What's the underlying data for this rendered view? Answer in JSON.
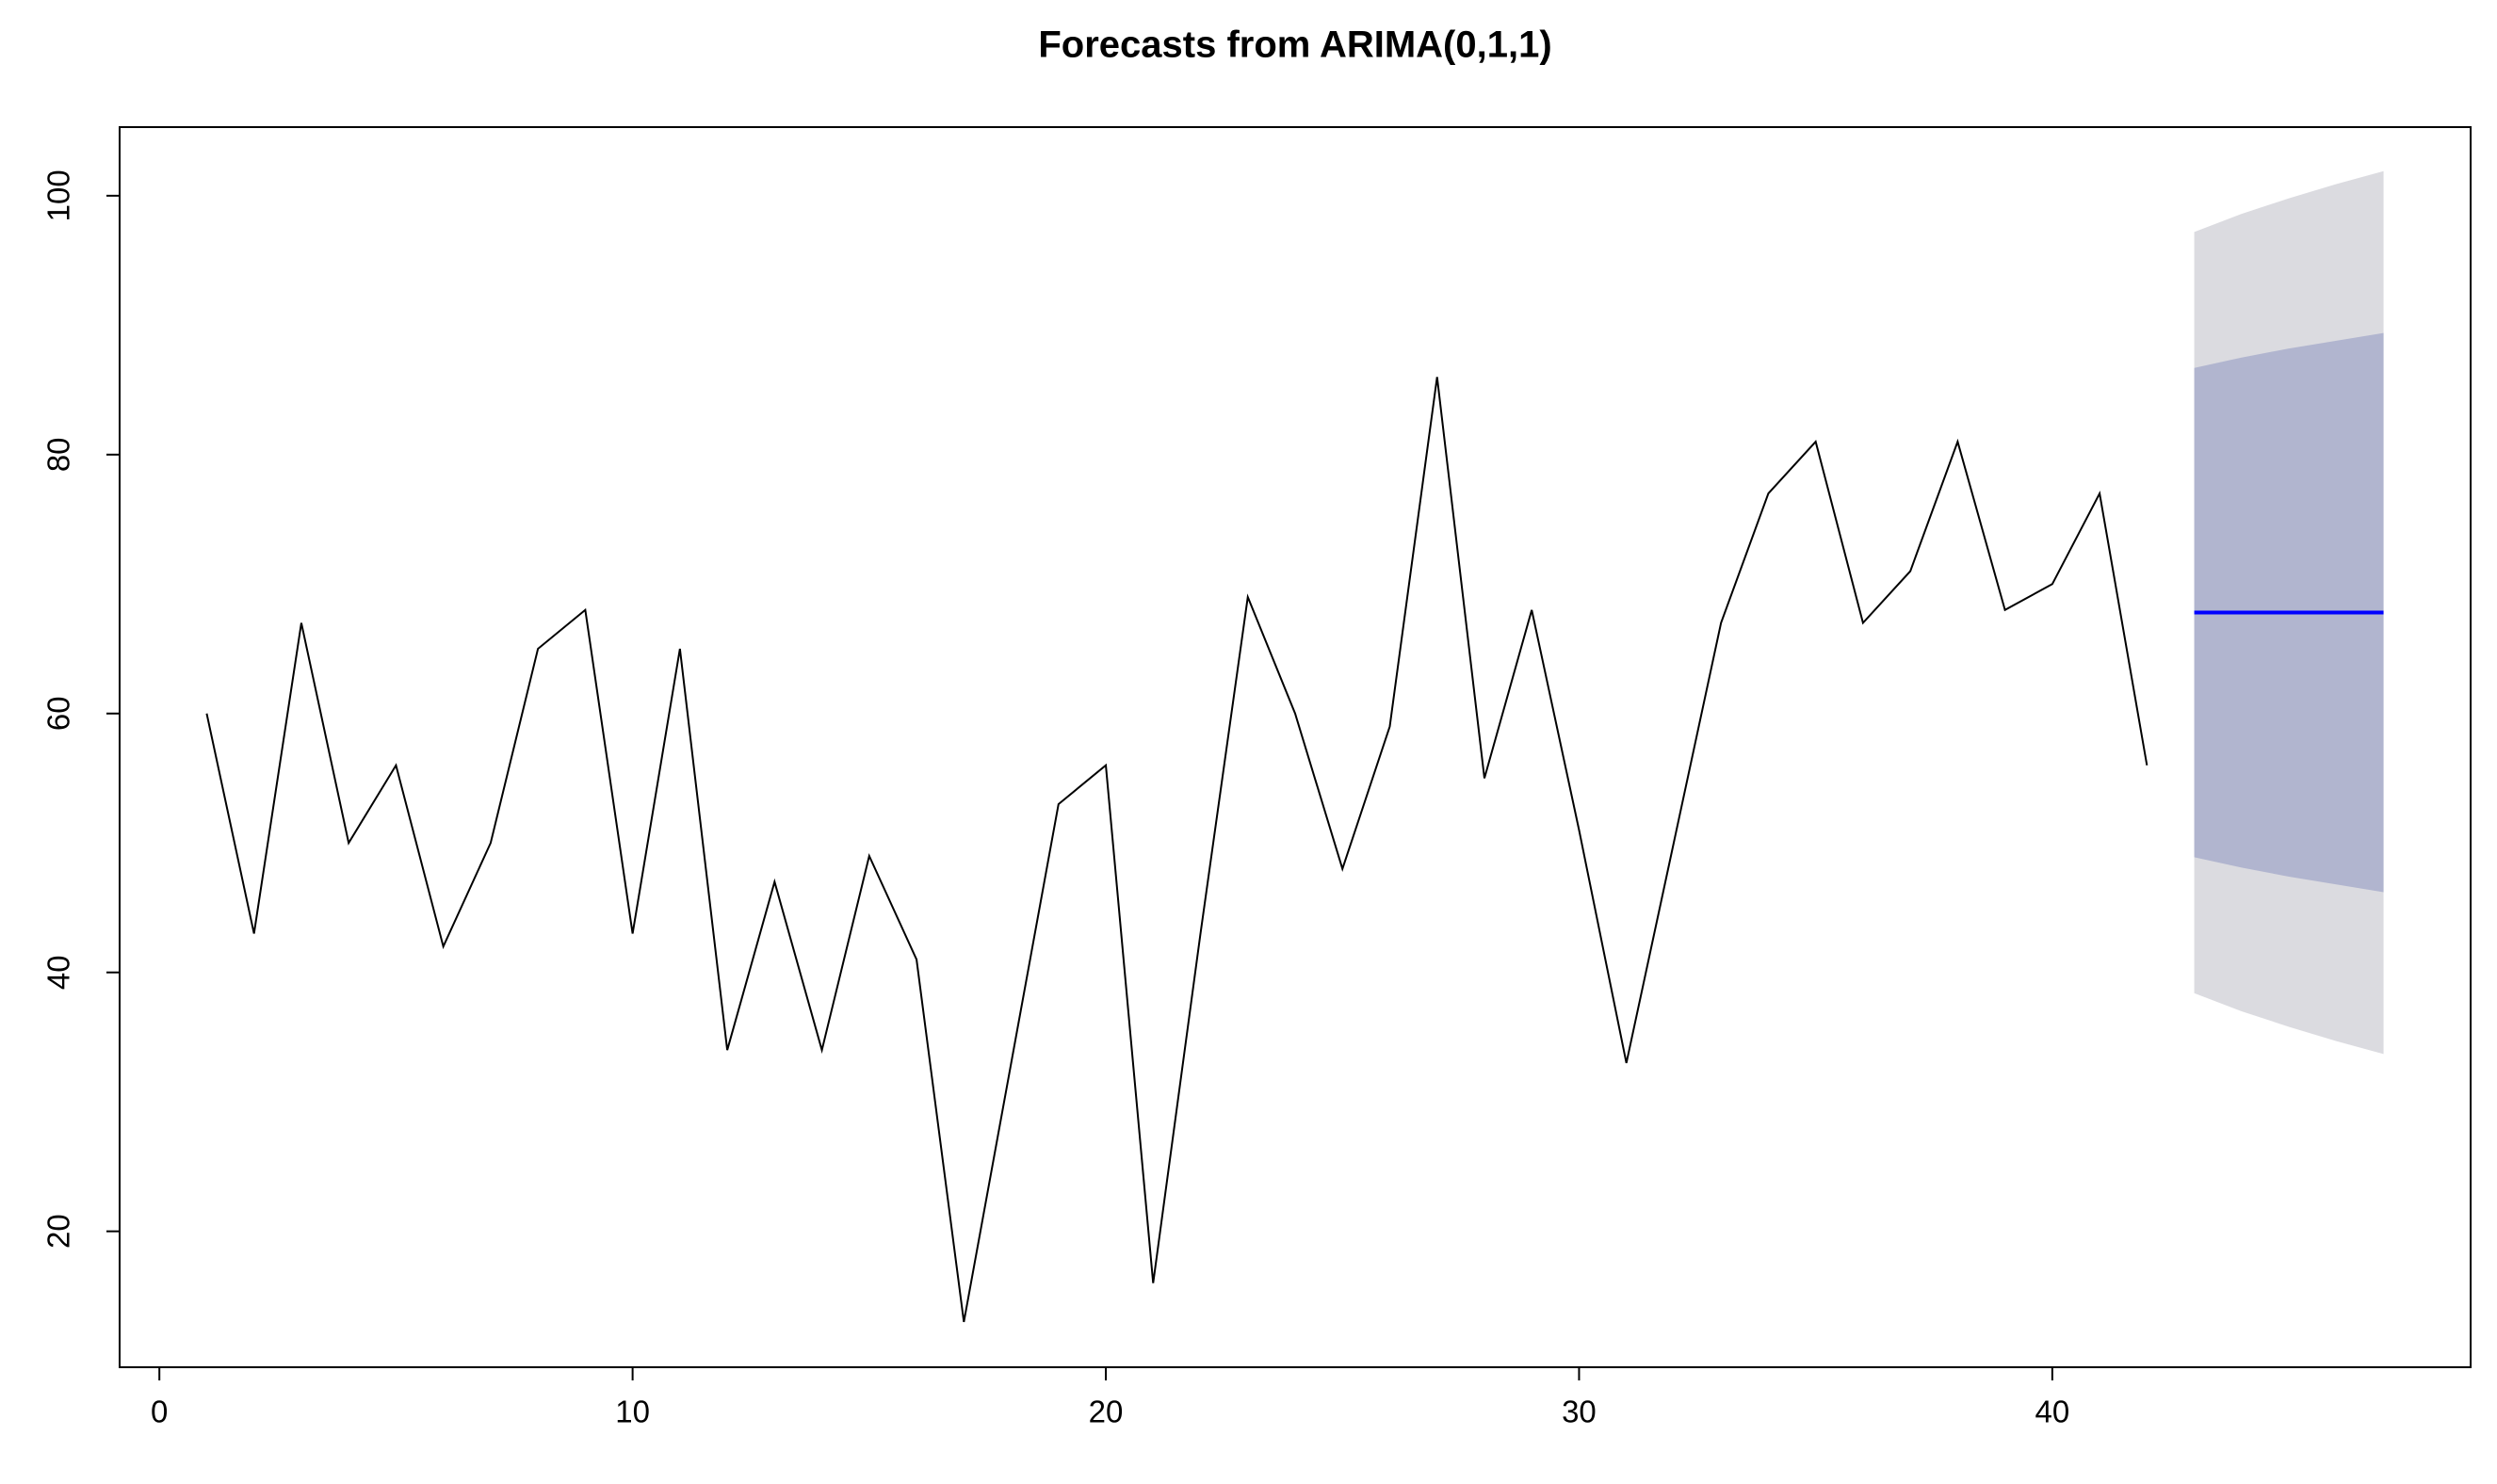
{
  "chart_data": {
    "type": "line",
    "title": "Forecasts from ARIMA(0,1,1)",
    "x": [
      1,
      2,
      3,
      4,
      5,
      6,
      7,
      8,
      9,
      10,
      11,
      12,
      13,
      14,
      15,
      16,
      17,
      18,
      19,
      20,
      21,
      22,
      23,
      24,
      25,
      26,
      27,
      28,
      29,
      30,
      31,
      32,
      33,
      34,
      35,
      36,
      37,
      38,
      39,
      40,
      41,
      42,
      43,
      44,
      45,
      46,
      47
    ],
    "series": [
      {
        "color": "#000000",
        "values": [
          60,
          43,
          67,
          50,
          56,
          42,
          50,
          65,
          68,
          43,
          65,
          34,
          47,
          34,
          49,
          41,
          13,
          33,
          53,
          56,
          16,
          43,
          69,
          60,
          48,
          59,
          86,
          55,
          68,
          51,
          33,
          50,
          67,
          77,
          81,
          67,
          71,
          81,
          68,
          70,
          77,
          56,
          null,
          null,
          null,
          null,
          null
        ]
      },
      {
        "color": "#0000ff",
        "values": [
          null,
          null,
          null,
          null,
          null,
          null,
          null,
          null,
          null,
          null,
          null,
          null,
          null,
          null,
          null,
          null,
          null,
          null,
          null,
          null,
          null,
          null,
          null,
          null,
          null,
          null,
          null,
          null,
          null,
          null,
          null,
          null,
          null,
          null,
          null,
          null,
          null,
          null,
          null,
          null,
          null,
          null,
          67.8,
          67.8,
          67.8,
          67.8,
          67.8
        ]
      }
    ],
    "bands": [
      {
        "color": "#dbdbe0",
        "lower": [
          null,
          null,
          null,
          null,
          null,
          null,
          null,
          null,
          null,
          null,
          null,
          null,
          null,
          null,
          null,
          null,
          null,
          null,
          null,
          null,
          null,
          null,
          null,
          null,
          null,
          null,
          null,
          null,
          null,
          null,
          null,
          null,
          null,
          null,
          null,
          null,
          null,
          null,
          null,
          null,
          null,
          null,
          38.4,
          37.0,
          35.8,
          34.7,
          33.7
        ],
        "upper": [
          null,
          null,
          null,
          null,
          null,
          null,
          null,
          null,
          null,
          null,
          null,
          null,
          null,
          null,
          null,
          null,
          null,
          null,
          null,
          null,
          null,
          null,
          null,
          null,
          null,
          null,
          null,
          null,
          null,
          null,
          null,
          null,
          null,
          null,
          null,
          null,
          null,
          null,
          null,
          null,
          null,
          null,
          97.2,
          98.6,
          99.8,
          100.9,
          101.9
        ]
      },
      {
        "color": "#b1b5cf",
        "lower": [
          null,
          null,
          null,
          null,
          null,
          null,
          null,
          null,
          null,
          null,
          null,
          null,
          null,
          null,
          null,
          null,
          null,
          null,
          null,
          null,
          null,
          null,
          null,
          null,
          null,
          null,
          null,
          null,
          null,
          null,
          null,
          null,
          null,
          null,
          null,
          null,
          null,
          null,
          null,
          null,
          null,
          null,
          48.9,
          48.1,
          47.4,
          46.8,
          46.2
        ],
        "upper": [
          null,
          null,
          null,
          null,
          null,
          null,
          null,
          null,
          null,
          null,
          null,
          null,
          null,
          null,
          null,
          null,
          null,
          null,
          null,
          null,
          null,
          null,
          null,
          null,
          null,
          null,
          null,
          null,
          null,
          null,
          null,
          null,
          null,
          null,
          null,
          null,
          null,
          null,
          null,
          null,
          null,
          null,
          86.7,
          87.5,
          88.2,
          88.8,
          89.4
        ]
      }
    ],
    "xlim": [
      -0.84,
      48.84
    ],
    "ylim": [
      9.5,
      105.3
    ],
    "xticks": [
      0,
      10,
      20,
      30,
      40
    ],
    "yticks": [
      20,
      40,
      60,
      80,
      100
    ]
  }
}
